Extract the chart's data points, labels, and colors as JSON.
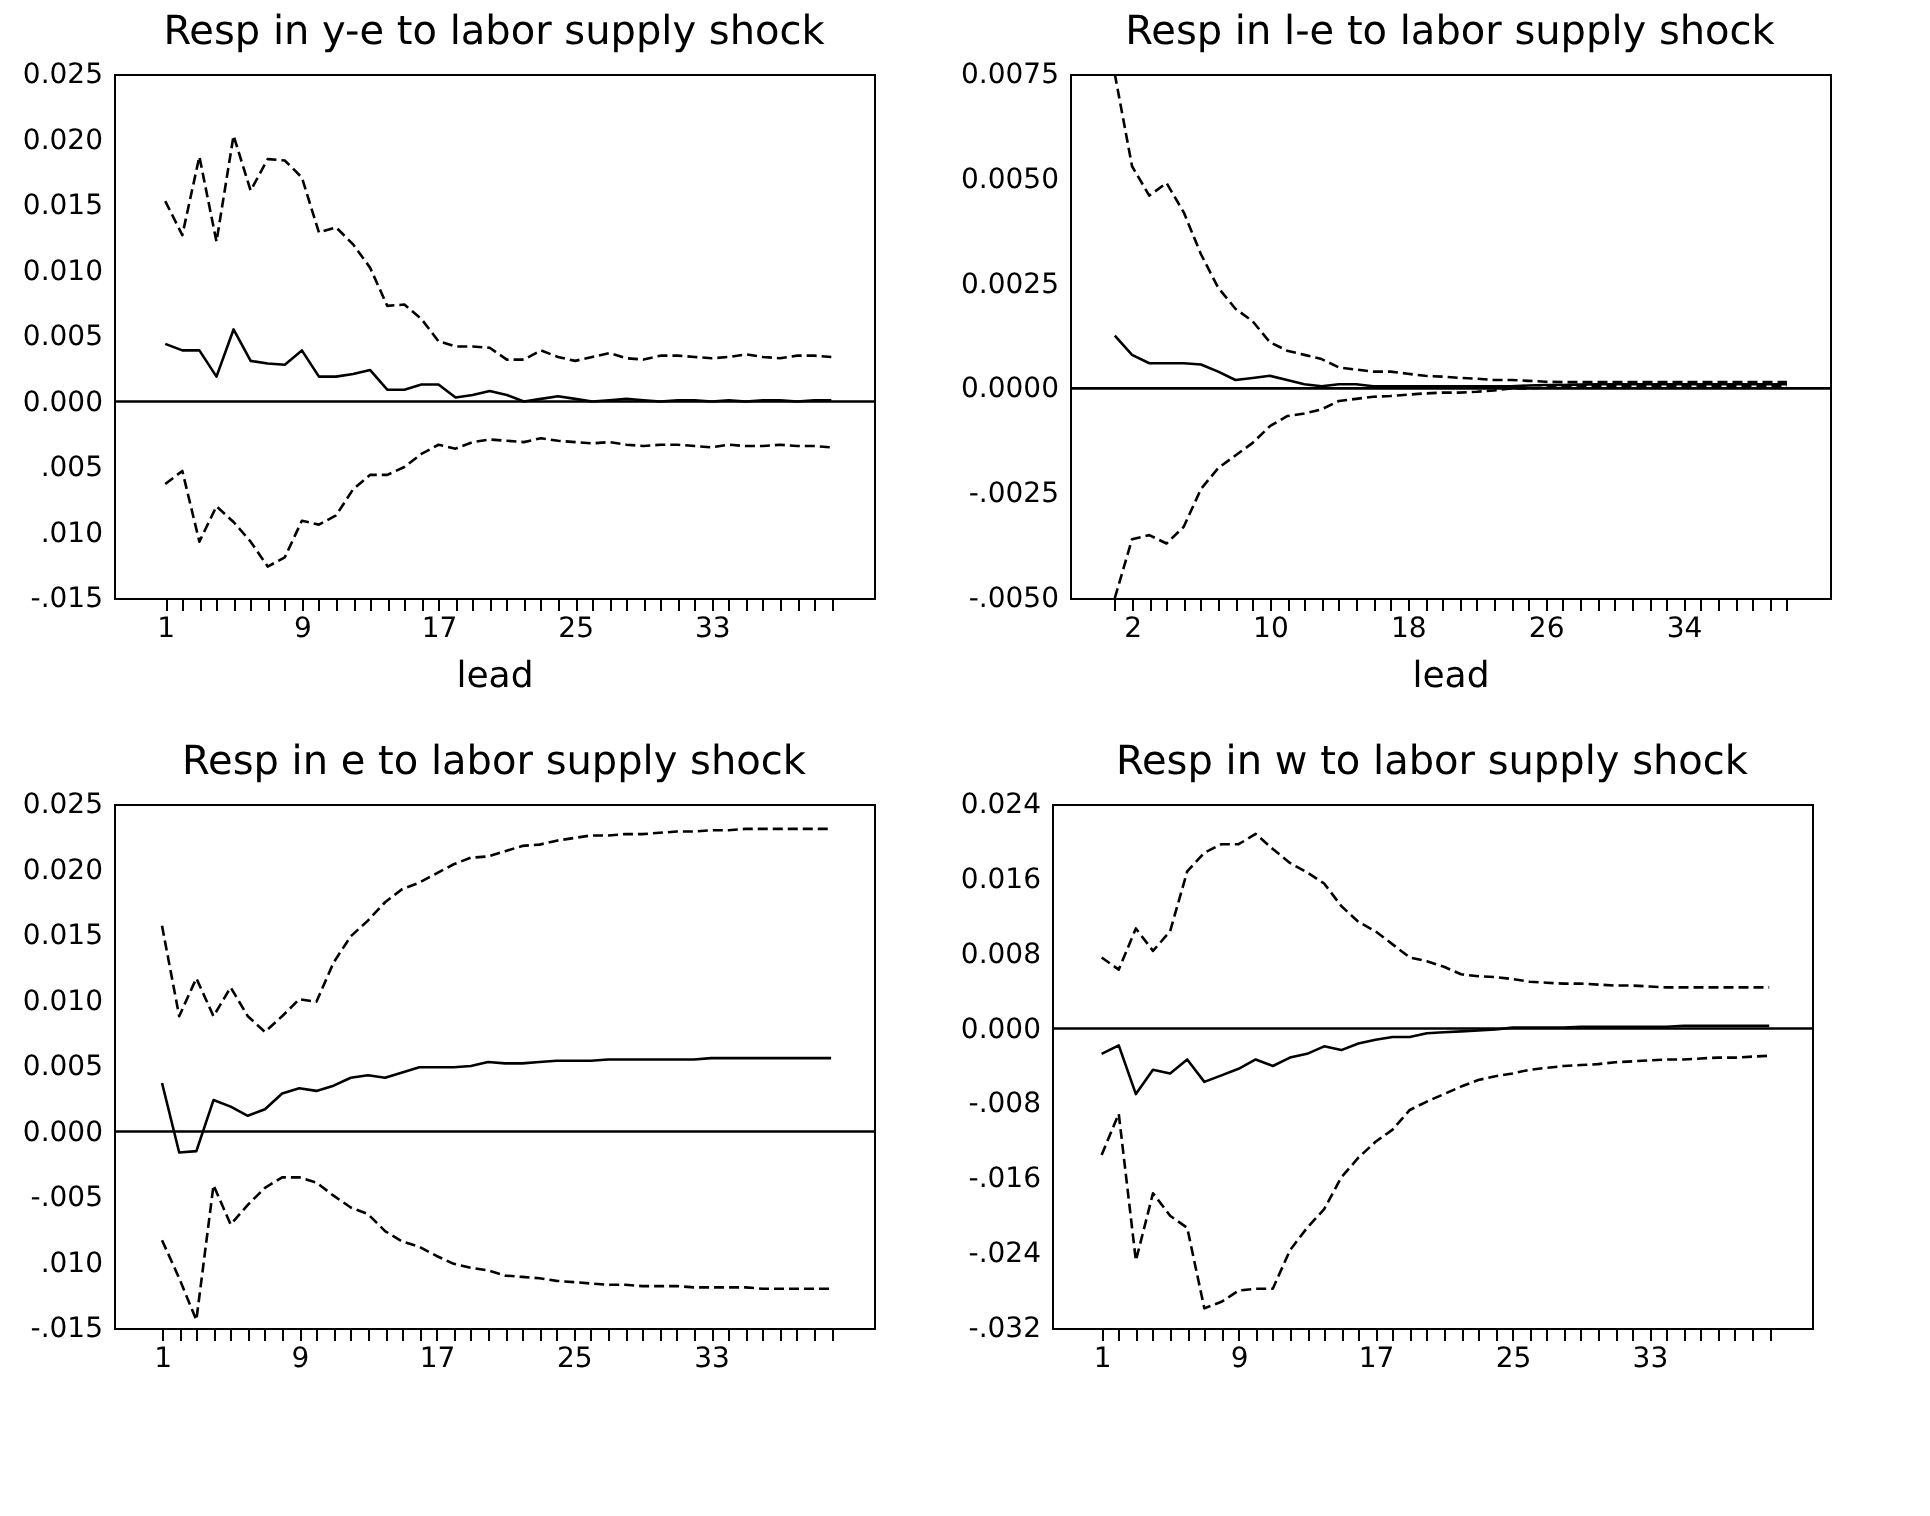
{
  "chart_data": [
    {
      "type": "line",
      "title": "Resp in y-e to labor supply shock",
      "xlabel": "lead",
      "x": [
        1,
        2,
        3,
        4,
        5,
        6,
        7,
        8,
        9,
        10,
        11,
        12,
        13,
        14,
        15,
        16,
        17,
        18,
        19,
        20,
        21,
        22,
        23,
        24,
        25,
        26,
        27,
        28,
        29,
        30,
        31,
        32,
        33,
        34,
        35,
        36,
        37,
        38,
        39,
        40
      ],
      "xlim": [
        -2,
        42.5
      ],
      "ylim": [
        -0.015,
        0.025
      ],
      "yticks": [
        {
          "value": 0.025,
          "label": "0.025"
        },
        {
          "value": 0.02,
          "label": "0.020"
        },
        {
          "value": 0.015,
          "label": "0.015"
        },
        {
          "value": 0.01,
          "label": "0.010"
        },
        {
          "value": 0.005,
          "label": "0.005"
        },
        {
          "value": 0,
          "label": "0.000"
        },
        {
          "value": -0.005,
          "label": ".005"
        },
        {
          "value": -0.01,
          "label": ".010"
        },
        {
          "value": -0.015,
          "label": "-.015"
        }
      ],
      "xticks": [
        1,
        {
          "value": 2,
          "label": null
        },
        {
          "value": 3,
          "label": null
        },
        {
          "value": 4,
          "label": null
        },
        {
          "value": 5,
          "label": null
        },
        {
          "value": 6,
          "label": null
        },
        {
          "value": 7,
          "label": null
        },
        {
          "value": 8,
          "label": null
        },
        9,
        {
          "value": 10,
          "label": null
        },
        {
          "value": 11,
          "label": null
        },
        {
          "value": 12,
          "label": null
        },
        {
          "value": 13,
          "label": null
        },
        {
          "value": 14,
          "label": null
        },
        {
          "value": 15,
          "label": null
        },
        {
          "value": 16,
          "label": null
        },
        17,
        {
          "value": 18,
          "label": null
        },
        {
          "value": 19,
          "label": null
        },
        {
          "value": 20,
          "label": null
        },
        {
          "value": 21,
          "label": null
        },
        {
          "value": 22,
          "label": null
        },
        {
          "value": 23,
          "label": null
        },
        {
          "value": 24,
          "label": null
        },
        25,
        {
          "value": 26,
          "label": null
        },
        {
          "value": 27,
          "label": null
        },
        {
          "value": 28,
          "label": null
        },
        {
          "value": 29,
          "label": null
        },
        {
          "value": 30,
          "label": null
        },
        {
          "value": 31,
          "label": null
        },
        {
          "value": 32,
          "label": null
        },
        33,
        {
          "value": 34,
          "label": null
        },
        {
          "value": 35,
          "label": null
        },
        {
          "value": 36,
          "label": null
        },
        {
          "value": 37,
          "label": null
        },
        {
          "value": 38,
          "label": null
        },
        {
          "value": 39,
          "label": null
        },
        {
          "value": 40,
          "label": null
        }
      ],
      "ref_lines": [
        {
          "axis": "y",
          "value": 0,
          "color": "#000000"
        }
      ],
      "series": [
        {
          "color": "#000000",
          "line_style": "solid",
          "values": [
            0.0044,
            0.0039,
            0.0039,
            0.0019,
            0.0055,
            0.0031,
            0.0029,
            0.0028,
            0.0039,
            0.0019,
            0.0019,
            0.0021,
            0.0024,
            0.0009,
            0.0009,
            0.0013,
            0.0013,
            0.0003,
            0.0005,
            0.0008,
            0.0005,
            0.0,
            0.0002,
            0.0004,
            0.0002,
            0.0,
            0.0001,
            0.0002,
            0.0001,
            0.0,
            0.0001,
            0.0001,
            0.0,
            0.0001,
            0.0,
            0.0001,
            0.0001,
            0.0,
            0.0001,
            0.0001
          ]
        },
        {
          "color": "#000000",
          "line_style": "dashed",
          "values": [
            0.0153,
            0.0127,
            0.0187,
            0.0122,
            0.0203,
            0.0161,
            0.0185,
            0.0184,
            0.0171,
            0.0129,
            0.0133,
            0.012,
            0.0102,
            0.0073,
            0.0074,
            0.0063,
            0.0046,
            0.0042,
            0.0042,
            0.0041,
            0.0032,
            0.0032,
            0.0039,
            0.0034,
            0.0031,
            0.0034,
            0.0037,
            0.0033,
            0.0032,
            0.0035,
            0.0035,
            0.0034,
            0.0033,
            0.0034,
            0.0036,
            0.0034,
            0.0033,
            0.0035,
            0.0035,
            0.0034
          ]
        },
        {
          "color": "#000000",
          "line_style": "dashed",
          "values": [
            -0.0063,
            -0.0053,
            -0.0107,
            -0.008,
            -0.0092,
            -0.0107,
            -0.0126,
            -0.0119,
            -0.0091,
            -0.0094,
            -0.0087,
            -0.0067,
            -0.0056,
            -0.0056,
            -0.005,
            -0.004,
            -0.0033,
            -0.0036,
            -0.0031,
            -0.0029,
            -0.003,
            -0.0031,
            -0.0028,
            -0.003,
            -0.0031,
            -0.0032,
            -0.0031,
            -0.0033,
            -0.0034,
            -0.0033,
            -0.0033,
            -0.0034,
            -0.0035,
            -0.0033,
            -0.0034,
            -0.0034,
            -0.0033,
            -0.0034,
            -0.0034,
            -0.0035
          ]
        }
      ]
    },
    {
      "type": "line",
      "title": "Resp in l-e to labor supply shock",
      "xlabel": "lead",
      "x": [
        1,
        2,
        3,
        4,
        5,
        6,
        7,
        8,
        9,
        10,
        11,
        12,
        13,
        14,
        15,
        16,
        17,
        18,
        19,
        20,
        21,
        22,
        23,
        24,
        25,
        26,
        27,
        28,
        29,
        30,
        31,
        32,
        33,
        34,
        35,
        36,
        37,
        38,
        39,
        40
      ],
      "xlim": [
        -1.6,
        42.5
      ],
      "ylim": [
        -0.005,
        0.0075
      ],
      "yticks": [
        {
          "value": 0.0075,
          "label": "0.0075"
        },
        {
          "value": 0.005,
          "label": "0.0050"
        },
        {
          "value": 0.0025,
          "label": "0.0025"
        },
        {
          "value": 0,
          "label": "0.0000"
        },
        {
          "value": -0.0025,
          "label": "-.0025"
        },
        {
          "value": -0.005,
          "label": "-.0050"
        }
      ],
      "xticks": [
        {
          "value": 1,
          "label": null
        },
        2,
        {
          "value": 3,
          "label": null
        },
        {
          "value": 4,
          "label": null
        },
        {
          "value": 5,
          "label": null
        },
        {
          "value": 6,
          "label": null
        },
        {
          "value": 7,
          "label": null
        },
        {
          "value": 8,
          "label": null
        },
        {
          "value": 9,
          "label": null
        },
        10,
        {
          "value": 11,
          "label": null
        },
        {
          "value": 12,
          "label": null
        },
        {
          "value": 13,
          "label": null
        },
        {
          "value": 14,
          "label": null
        },
        {
          "value": 15,
          "label": null
        },
        {
          "value": 16,
          "label": null
        },
        {
          "value": 17,
          "label": null
        },
        18,
        {
          "value": 19,
          "label": null
        },
        {
          "value": 20,
          "label": null
        },
        {
          "value": 21,
          "label": null
        },
        {
          "value": 22,
          "label": null
        },
        {
          "value": 23,
          "label": null
        },
        {
          "value": 24,
          "label": null
        },
        {
          "value": 25,
          "label": null
        },
        26,
        {
          "value": 27,
          "label": null
        },
        {
          "value": 28,
          "label": null
        },
        {
          "value": 29,
          "label": null
        },
        {
          "value": 30,
          "label": null
        },
        {
          "value": 31,
          "label": null
        },
        {
          "value": 32,
          "label": null
        },
        {
          "value": 33,
          "label": null
        },
        34,
        {
          "value": 35,
          "label": null
        },
        {
          "value": 36,
          "label": null
        },
        {
          "value": 37,
          "label": null
        },
        {
          "value": 38,
          "label": null
        },
        {
          "value": 39,
          "label": null
        },
        {
          "value": 40,
          "label": null
        }
      ],
      "ref_lines": [
        {
          "axis": "y",
          "value": 0,
          "color": "#000000"
        }
      ],
      "series": [
        {
          "color": "#000000",
          "line_style": "solid",
          "values": [
            0.00126,
            0.0008,
            0.0006,
            0.0006,
            0.0006,
            0.00057,
            0.0004,
            0.0002,
            0.00025,
            0.0003,
            0.0002,
            0.0001,
            5e-05,
            0.0001,
            0.0001,
            5e-05,
            5e-05,
            5e-05,
            5e-05,
            5e-05,
            5e-05,
            5e-05,
            5e-05,
            5e-05,
            7e-05,
            8e-05,
            8e-05,
            9e-05,
            0.0001,
            0.0001,
            0.0001,
            0.0001,
            0.0001,
            0.0001,
            0.0001,
            0.0001,
            0.0001,
            0.0001,
            0.0001,
            0.0001
          ]
        },
        {
          "color": "#000000",
          "line_style": "dashed",
          "values": [
            0.0075,
            0.0053,
            0.0046,
            0.0049,
            0.0042,
            0.0032,
            0.0024,
            0.0019,
            0.0016,
            0.0011,
            0.0009,
            0.0008,
            0.0007,
            0.0005,
            0.00045,
            0.0004,
            0.0004,
            0.00035,
            0.0003,
            0.00028,
            0.00025,
            0.00023,
            0.0002,
            0.0002,
            0.00018,
            0.00016,
            0.00015,
            0.00015,
            0.00015,
            0.00015,
            0.00015,
            0.00015,
            0.00015,
            0.00015,
            0.00015,
            0.00015,
            0.00015,
            0.00015,
            0.00015,
            0.00015
          ]
        },
        {
          "color": "#000000",
          "line_style": "dashed",
          "values": [
            -0.005,
            -0.0036,
            -0.0035,
            -0.0037,
            -0.0033,
            -0.0024,
            -0.0019,
            -0.0016,
            -0.0013,
            -0.0009,
            -0.00066,
            -0.0006,
            -0.0005,
            -0.0003,
            -0.00025,
            -0.0002,
            -0.00018,
            -0.00015,
            -0.00012,
            -0.0001,
            -0.0001,
            -8e-05,
            -5e-05,
            0.0,
            0.0,
            2e-05,
            5e-05,
            5e-05,
            5e-05,
            5e-05,
            5e-05,
            5e-05,
            5e-05,
            5e-05,
            5e-05,
            5e-05,
            5e-05,
            5e-05,
            5e-05,
            5e-05
          ]
        }
      ]
    },
    {
      "type": "line",
      "title": "Resp in e to labor supply shock",
      "x": [
        1,
        2,
        3,
        4,
        5,
        6,
        7,
        8,
        9,
        10,
        11,
        12,
        13,
        14,
        15,
        16,
        17,
        18,
        19,
        20,
        21,
        22,
        23,
        24,
        25,
        26,
        27,
        28,
        29,
        30,
        31,
        32,
        33,
        34,
        35,
        36,
        37,
        38,
        39,
        40
      ],
      "xlim": [
        -1.8,
        42.5
      ],
      "ylim": [
        -0.015,
        0.025
      ],
      "yticks": [
        {
          "value": 0.025,
          "label": "0.025"
        },
        {
          "value": 0.02,
          "label": "0.020"
        },
        {
          "value": 0.015,
          "label": "0.015"
        },
        {
          "value": 0.01,
          "label": "0.010"
        },
        {
          "value": 0.005,
          "label": "0.005"
        },
        {
          "value": 0,
          "label": "0.000"
        },
        {
          "value": -0.005,
          "label": "-.005"
        },
        {
          "value": -0.01,
          "label": ".010"
        },
        {
          "value": -0.015,
          "label": "-.015"
        }
      ],
      "xticks": [
        1,
        {
          "value": 2,
          "label": null
        },
        {
          "value": 3,
          "label": null
        },
        {
          "value": 4,
          "label": null
        },
        {
          "value": 5,
          "label": null
        },
        {
          "value": 6,
          "label": null
        },
        {
          "value": 7,
          "label": null
        },
        {
          "value": 8,
          "label": null
        },
        9,
        {
          "value": 10,
          "label": null
        },
        {
          "value": 11,
          "label": null
        },
        {
          "value": 12,
          "label": null
        },
        {
          "value": 13,
          "label": null
        },
        {
          "value": 14,
          "label": null
        },
        {
          "value": 15,
          "label": null
        },
        {
          "value": 16,
          "label": null
        },
        17,
        {
          "value": 18,
          "label": null
        },
        {
          "value": 19,
          "label": null
        },
        {
          "value": 20,
          "label": null
        },
        {
          "value": 21,
          "label": null
        },
        {
          "value": 22,
          "label": null
        },
        {
          "value": 23,
          "label": null
        },
        {
          "value": 24,
          "label": null
        },
        25,
        {
          "value": 26,
          "label": null
        },
        {
          "value": 27,
          "label": null
        },
        {
          "value": 28,
          "label": null
        },
        {
          "value": 29,
          "label": null
        },
        {
          "value": 30,
          "label": null
        },
        {
          "value": 31,
          "label": null
        },
        {
          "value": 32,
          "label": null
        },
        33,
        {
          "value": 34,
          "label": null
        },
        {
          "value": 35,
          "label": null
        },
        {
          "value": 36,
          "label": null
        },
        {
          "value": 37,
          "label": null
        },
        {
          "value": 38,
          "label": null
        },
        {
          "value": 39,
          "label": null
        },
        {
          "value": 40,
          "label": null
        }
      ],
      "ref_lines": [
        {
          "axis": "y",
          "value": 0,
          "color": "#000000"
        }
      ],
      "series": [
        {
          "color": "#000000",
          "line_style": "solid",
          "values": [
            0.0037,
            -0.0016,
            -0.0015,
            0.0024,
            0.0019,
            0.0012,
            0.0017,
            0.0029,
            0.0033,
            0.0031,
            0.0035,
            0.0041,
            0.0043,
            0.0041,
            0.0045,
            0.0049,
            0.0049,
            0.0049,
            0.005,
            0.0053,
            0.0052,
            0.0052,
            0.0053,
            0.0054,
            0.0054,
            0.0054,
            0.0055,
            0.0055,
            0.0055,
            0.0055,
            0.0055,
            0.0055,
            0.0056,
            0.0056,
            0.0056,
            0.0056,
            0.0056,
            0.0056,
            0.0056,
            0.0056
          ]
        },
        {
          "color": "#000000",
          "line_style": "dashed",
          "values": [
            0.0157,
            0.0088,
            0.0117,
            0.0088,
            0.011,
            0.0088,
            0.0076,
            0.0088,
            0.0101,
            0.0099,
            0.0129,
            0.0149,
            0.0161,
            0.0175,
            0.0185,
            0.019,
            0.0197,
            0.0204,
            0.0209,
            0.021,
            0.0214,
            0.0218,
            0.0219,
            0.0222,
            0.0224,
            0.0226,
            0.0226,
            0.0227,
            0.0227,
            0.0228,
            0.0229,
            0.0229,
            0.023,
            0.023,
            0.0231,
            0.0231,
            0.0231,
            0.0231,
            0.0231,
            0.0231
          ]
        },
        {
          "color": "#000000",
          "line_style": "dashed",
          "values": [
            -0.0083,
            -0.0112,
            -0.0144,
            -0.0041,
            -0.0071,
            -0.0056,
            -0.0043,
            -0.0035,
            -0.0035,
            -0.0039,
            -0.0049,
            -0.0058,
            -0.0063,
            -0.0076,
            -0.0084,
            -0.0088,
            -0.0095,
            -0.0101,
            -0.0104,
            -0.0106,
            -0.011,
            -0.0111,
            -0.0112,
            -0.0114,
            -0.0115,
            -0.0116,
            -0.0117,
            -0.0117,
            -0.0118,
            -0.0118,
            -0.0118,
            -0.0119,
            -0.0119,
            -0.0119,
            -0.0119,
            -0.012,
            -0.012,
            -0.012,
            -0.012,
            -0.012
          ]
        }
      ]
    },
    {
      "type": "line",
      "title": "Resp in w to labor supply shock",
      "x": [
        1,
        2,
        3,
        4,
        5,
        6,
        7,
        8,
        9,
        10,
        11,
        12,
        13,
        14,
        15,
        16,
        17,
        18,
        19,
        20,
        21,
        22,
        23,
        24,
        25,
        26,
        27,
        28,
        29,
        30,
        31,
        32,
        33,
        34,
        35,
        36,
        37,
        38,
        39,
        40
      ],
      "xlim": [
        -1.9,
        42.5
      ],
      "ylim": [
        -0.032,
        0.024
      ],
      "yticks": [
        {
          "value": 0.024,
          "label": "0.024"
        },
        {
          "value": 0.016,
          "label": "0.016"
        },
        {
          "value": 0.008,
          "label": "0.008"
        },
        {
          "value": 0,
          "label": "0.000"
        },
        {
          "value": -0.008,
          "label": "-.008"
        },
        {
          "value": -0.016,
          "label": "-.016"
        },
        {
          "value": -0.024,
          "label": "-.024"
        },
        {
          "value": -0.032,
          "label": "-.032"
        }
      ],
      "xticks": [
        1,
        {
          "value": 2,
          "label": null
        },
        {
          "value": 3,
          "label": null
        },
        {
          "value": 4,
          "label": null
        },
        {
          "value": 5,
          "label": null
        },
        {
          "value": 6,
          "label": null
        },
        {
          "value": 7,
          "label": null
        },
        {
          "value": 8,
          "label": null
        },
        9,
        {
          "value": 10,
          "label": null
        },
        {
          "value": 11,
          "label": null
        },
        {
          "value": 12,
          "label": null
        },
        {
          "value": 13,
          "label": null
        },
        {
          "value": 14,
          "label": null
        },
        {
          "value": 15,
          "label": null
        },
        {
          "value": 16,
          "label": null
        },
        17,
        {
          "value": 18,
          "label": null
        },
        {
          "value": 19,
          "label": null
        },
        {
          "value": 20,
          "label": null
        },
        {
          "value": 21,
          "label": null
        },
        {
          "value": 22,
          "label": null
        },
        {
          "value": 23,
          "label": null
        },
        {
          "value": 24,
          "label": null
        },
        25,
        {
          "value": 26,
          "label": null
        },
        {
          "value": 27,
          "label": null
        },
        {
          "value": 28,
          "label": null
        },
        {
          "value": 29,
          "label": null
        },
        {
          "value": 30,
          "label": null
        },
        {
          "value": 31,
          "label": null
        },
        {
          "value": 32,
          "label": null
        },
        33,
        {
          "value": 34,
          "label": null
        },
        {
          "value": 35,
          "label": null
        },
        {
          "value": 36,
          "label": null
        },
        {
          "value": 37,
          "label": null
        },
        {
          "value": 38,
          "label": null
        },
        {
          "value": 39,
          "label": null
        },
        {
          "value": 40,
          "label": null
        }
      ],
      "ref_lines": [
        {
          "axis": "y",
          "value": 0,
          "color": "#000000"
        }
      ],
      "series": [
        {
          "color": "#000000",
          "line_style": "solid",
          "values": [
            -0.0027,
            -0.0018,
            -0.007,
            -0.0044,
            -0.0048,
            -0.0033,
            -0.0057,
            -0.005,
            -0.0043,
            -0.0033,
            -0.004,
            -0.0031,
            -0.0027,
            -0.0019,
            -0.0023,
            -0.0016,
            -0.0012,
            -0.0009,
            -0.0009,
            -0.0005,
            -0.0004,
            -0.0003,
            -0.0002,
            -0.0001,
            0.0001,
            0.0001,
            0.0001,
            0.0001,
            0.0002,
            0.0002,
            0.0002,
            0.0002,
            0.0002,
            0.0002,
            0.0003,
            0.0003,
            0.0003,
            0.0003,
            0.0003,
            0.0003
          ]
        },
        {
          "color": "#000000",
          "line_style": "dashed",
          "values": [
            0.0076,
            0.0063,
            0.0107,
            0.0083,
            0.0104,
            0.0168,
            0.0188,
            0.0197,
            0.0197,
            0.0208,
            0.0192,
            0.0177,
            0.0167,
            0.0155,
            0.0131,
            0.0114,
            0.0104,
            0.009,
            0.0076,
            0.0072,
            0.0066,
            0.0058,
            0.0056,
            0.0055,
            0.0053,
            0.005,
            0.0049,
            0.0048,
            0.0048,
            0.0047,
            0.0046,
            0.0046,
            0.0045,
            0.0044,
            0.0044,
            0.0044,
            0.0044,
            0.0044,
            0.0044,
            0.0044
          ]
        },
        {
          "color": "#000000",
          "line_style": "dashed",
          "values": [
            -0.0135,
            -0.0091,
            -0.0248,
            -0.0176,
            -0.02,
            -0.0213,
            -0.0299,
            -0.0292,
            -0.028,
            -0.0278,
            -0.0278,
            -0.0237,
            -0.0213,
            -0.0193,
            -0.0159,
            -0.0138,
            -0.0121,
            -0.0108,
            -0.0087,
            -0.0078,
            -0.007,
            -0.0062,
            -0.0055,
            -0.0051,
            -0.0048,
            -0.0044,
            -0.0042,
            -0.004,
            -0.0039,
            -0.0038,
            -0.0036,
            -0.0035,
            -0.0034,
            -0.0033,
            -0.0033,
            -0.0032,
            -0.0031,
            -0.0031,
            -0.003,
            -0.0029
          ]
        }
      ]
    }
  ]
}
